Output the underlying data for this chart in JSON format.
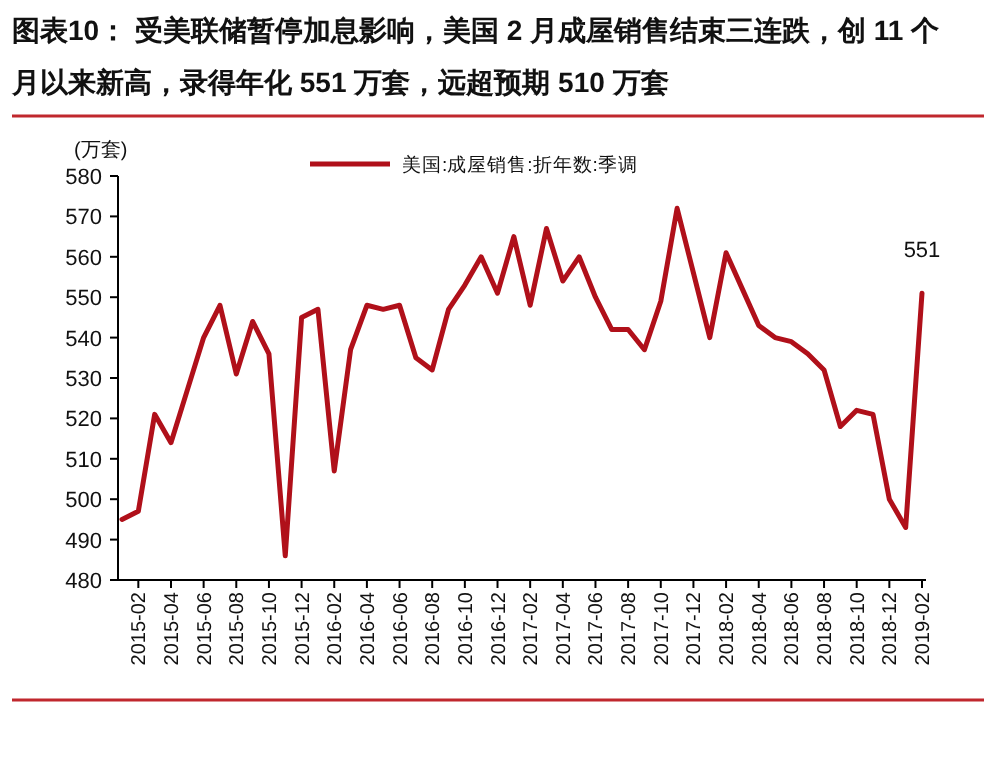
{
  "chart_data": {
    "type": "line",
    "title": "图表10：  受美联储暂停加息影响，美国 2 月成屋销售结束三连跌，创 11 个月以来新高，录得年化 551 万套，远超预期 510 万套",
    "ylabel": "(万套)",
    "categories": [
      null,
      "2015-02",
      null,
      "2015-04",
      null,
      "2015-06",
      null,
      "2015-08",
      null,
      "2015-10",
      null,
      "2015-12",
      null,
      "2016-02",
      null,
      "2016-04",
      null,
      "2016-06",
      null,
      "2016-08",
      null,
      "2016-10",
      null,
      "2016-12",
      null,
      "2017-02",
      null,
      "2017-04",
      null,
      "2017-06",
      null,
      "2017-08",
      null,
      "2017-10",
      null,
      "2017-12",
      null,
      "2018-02",
      null,
      "2018-04",
      null,
      "2018-06",
      null,
      "2018-08",
      null,
      "2018-10",
      null,
      "2018-12",
      null,
      "2019-02"
    ],
    "series": [
      {
        "name": "美国:成屋销售:折年数:季调",
        "color": "#b0101a",
        "values": [
          495,
          497,
          521,
          514,
          527,
          540,
          548,
          531,
          544,
          536,
          486,
          545,
          547,
          507,
          537,
          548,
          547,
          548,
          535,
          532,
          547,
          553,
          560,
          551,
          565,
          548,
          567,
          554,
          560,
          550,
          542,
          542,
          537,
          549,
          572,
          556,
          540,
          561,
          552,
          543,
          540,
          539,
          536,
          532,
          518,
          522,
          521,
          500,
          493,
          551
        ],
        "value_labels": [
          null,
          null,
          null,
          null,
          null,
          null,
          null,
          null,
          null,
          null,
          null,
          null,
          null,
          null,
          null,
          null,
          null,
          null,
          null,
          null,
          null,
          null,
          null,
          null,
          null,
          null,
          null,
          null,
          null,
          null,
          null,
          null,
          null,
          null,
          null,
          null,
          null,
          null,
          null,
          null,
          null,
          null,
          null,
          null,
          null,
          null,
          null,
          null,
          null,
          "551"
        ]
      }
    ],
    "ylim": [
      480,
      580
    ],
    "yticks": [
      480,
      490,
      500,
      510,
      520,
      530,
      540,
      550,
      560,
      570,
      580
    ],
    "legend": "top"
  }
}
